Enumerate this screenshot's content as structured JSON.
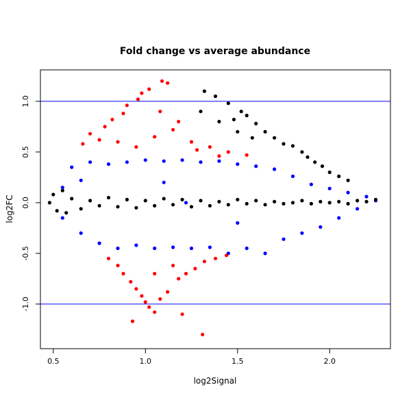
{
  "chart_data": {
    "type": "scatter",
    "title": "Fold change vs average abundance",
    "xlabel": "log2Signal",
    "ylabel": "log2FC",
    "xlim": [
      0.43,
      2.33
    ],
    "ylim": [
      -1.44,
      1.31
    ],
    "x_ticks": [
      0.5,
      1.0,
      1.5,
      2.0
    ],
    "x_tick_labels": [
      "0.5",
      "1.0",
      "1.5",
      "2.0"
    ],
    "y_ticks": [
      -1.0,
      -0.5,
      0.0,
      0.5,
      1.0
    ],
    "y_tick_labels": [
      "-1.0",
      "-0.5",
      "0.0",
      "0.5",
      "1.0"
    ],
    "reference_lines": {
      "y": [
        -1.0,
        1.0
      ],
      "color": "#0000ff"
    },
    "grid": false,
    "legend": "none",
    "colors": {
      "black_points": "#000000",
      "blue_points": "#0000ff",
      "red_points": "#ff0000"
    },
    "series": [
      {
        "color": "#0000ff",
        "points": [
          [
            0.6,
            0.35
          ],
          [
            0.65,
            -0.3
          ],
          [
            0.7,
            0.4
          ],
          [
            0.75,
            -0.4
          ],
          [
            0.8,
            0.38
          ],
          [
            0.85,
            -0.45
          ],
          [
            0.9,
            0.4
          ],
          [
            0.95,
            -0.42
          ],
          [
            1.0,
            0.42
          ],
          [
            1.05,
            -0.45
          ],
          [
            1.1,
            0.41
          ],
          [
            1.15,
            -0.44
          ],
          [
            1.2,
            0.42
          ],
          [
            1.25,
            -0.45
          ],
          [
            1.3,
            0.4
          ],
          [
            1.35,
            -0.44
          ],
          [
            1.4,
            0.41
          ],
          [
            1.45,
            -0.5
          ],
          [
            1.5,
            0.38
          ],
          [
            1.55,
            -0.45
          ],
          [
            1.6,
            0.36
          ],
          [
            1.65,
            -0.5
          ],
          [
            1.7,
            0.33
          ],
          [
            1.75,
            -0.36
          ],
          [
            1.8,
            0.26
          ],
          [
            1.85,
            -0.3
          ],
          [
            1.9,
            0.18
          ],
          [
            1.95,
            -0.24
          ],
          [
            2.0,
            0.14
          ],
          [
            2.05,
            -0.15
          ],
          [
            2.1,
            0.1
          ],
          [
            2.15,
            -0.06
          ],
          [
            2.2,
            0.06
          ],
          [
            2.25,
            0.02
          ],
          [
            0.55,
            0.15
          ],
          [
            0.55,
            -0.15
          ],
          [
            0.65,
            0.22
          ],
          [
            1.22,
            0.0
          ],
          [
            1.5,
            -0.2
          ],
          [
            1.1,
            0.2
          ]
        ]
      },
      {
        "color": "#ff0000",
        "points": [
          [
            1.09,
            1.2
          ],
          [
            1.12,
            1.18
          ],
          [
            1.02,
            1.12
          ],
          [
            0.98,
            1.08
          ],
          [
            0.96,
            1.02
          ],
          [
            0.9,
            0.96
          ],
          [
            0.88,
            0.88
          ],
          [
            0.82,
            0.82
          ],
          [
            0.78,
            0.75
          ],
          [
            0.7,
            0.68
          ],
          [
            0.66,
            0.58
          ],
          [
            0.75,
            0.62
          ],
          [
            0.85,
            0.6
          ],
          [
            0.95,
            0.55
          ],
          [
            1.05,
            0.65
          ],
          [
            1.15,
            0.72
          ],
          [
            1.25,
            0.6
          ],
          [
            1.35,
            0.55
          ],
          [
            1.45,
            0.5
          ],
          [
            1.55,
            0.47
          ],
          [
            1.18,
            0.8
          ],
          [
            1.08,
            0.9
          ],
          [
            1.28,
            0.52
          ],
          [
            1.4,
            0.46
          ],
          [
            0.8,
            -0.55
          ],
          [
            0.85,
            -0.62
          ],
          [
            0.88,
            -0.7
          ],
          [
            0.92,
            -0.78
          ],
          [
            0.95,
            -0.85
          ],
          [
            0.98,
            -0.92
          ],
          [
            1.0,
            -0.98
          ],
          [
            1.02,
            -1.03
          ],
          [
            1.05,
            -1.08
          ],
          [
            0.93,
            -1.17
          ],
          [
            1.08,
            -0.95
          ],
          [
            1.12,
            -0.88
          ],
          [
            1.18,
            -0.75
          ],
          [
            1.22,
            -0.7
          ],
          [
            1.27,
            -0.65
          ],
          [
            1.32,
            -0.58
          ],
          [
            1.38,
            -0.55
          ],
          [
            1.44,
            -0.52
          ],
          [
            1.31,
            -1.3
          ],
          [
            1.2,
            -1.1
          ],
          [
            1.15,
            -0.62
          ],
          [
            1.05,
            -0.7
          ]
        ]
      },
      {
        "color": "#000000",
        "points": [
          [
            0.48,
            0.0
          ],
          [
            0.5,
            0.08
          ],
          [
            0.52,
            -0.08
          ],
          [
            0.55,
            0.12
          ],
          [
            0.57,
            -0.1
          ],
          [
            0.6,
            0.04
          ],
          [
            0.65,
            -0.06
          ],
          [
            0.7,
            0.02
          ],
          [
            0.75,
            -0.03
          ],
          [
            0.8,
            0.05
          ],
          [
            0.85,
            -0.04
          ],
          [
            0.9,
            0.03
          ],
          [
            0.95,
            -0.05
          ],
          [
            1.0,
            0.02
          ],
          [
            1.05,
            -0.03
          ],
          [
            1.1,
            0.04
          ],
          [
            1.15,
            -0.02
          ],
          [
            1.2,
            0.03
          ],
          [
            1.25,
            -0.04
          ],
          [
            1.3,
            0.02
          ],
          [
            1.35,
            -0.03
          ],
          [
            1.4,
            0.01
          ],
          [
            1.45,
            -0.02
          ],
          [
            1.5,
            0.03
          ],
          [
            1.55,
            -0.01
          ],
          [
            1.6,
            0.02
          ],
          [
            1.65,
            -0.02
          ],
          [
            1.7,
            0.01
          ],
          [
            1.75,
            -0.01
          ],
          [
            1.8,
            0.0
          ],
          [
            1.85,
            0.02
          ],
          [
            1.9,
            -0.01
          ],
          [
            1.95,
            0.01
          ],
          [
            2.0,
            0.0
          ],
          [
            2.05,
            0.01
          ],
          [
            2.1,
            -0.01
          ],
          [
            2.15,
            0.02
          ],
          [
            2.2,
            0.01
          ],
          [
            2.25,
            0.03
          ],
          [
            1.32,
            1.1
          ],
          [
            1.38,
            1.05
          ],
          [
            1.45,
            0.98
          ],
          [
            1.52,
            0.9
          ],
          [
            1.48,
            0.82
          ],
          [
            1.55,
            0.86
          ],
          [
            1.6,
            0.78
          ],
          [
            1.65,
            0.7
          ],
          [
            1.7,
            0.64
          ],
          [
            1.75,
            0.58
          ],
          [
            1.8,
            0.56
          ],
          [
            1.85,
            0.5
          ],
          [
            1.88,
            0.45
          ],
          [
            1.92,
            0.4
          ],
          [
            1.96,
            0.36
          ],
          [
            2.0,
            0.3
          ],
          [
            2.05,
            0.26
          ],
          [
            2.1,
            0.22
          ],
          [
            1.3,
            0.9
          ],
          [
            1.4,
            0.8
          ],
          [
            1.5,
            0.7
          ],
          [
            1.58,
            0.64
          ]
        ]
      }
    ]
  }
}
